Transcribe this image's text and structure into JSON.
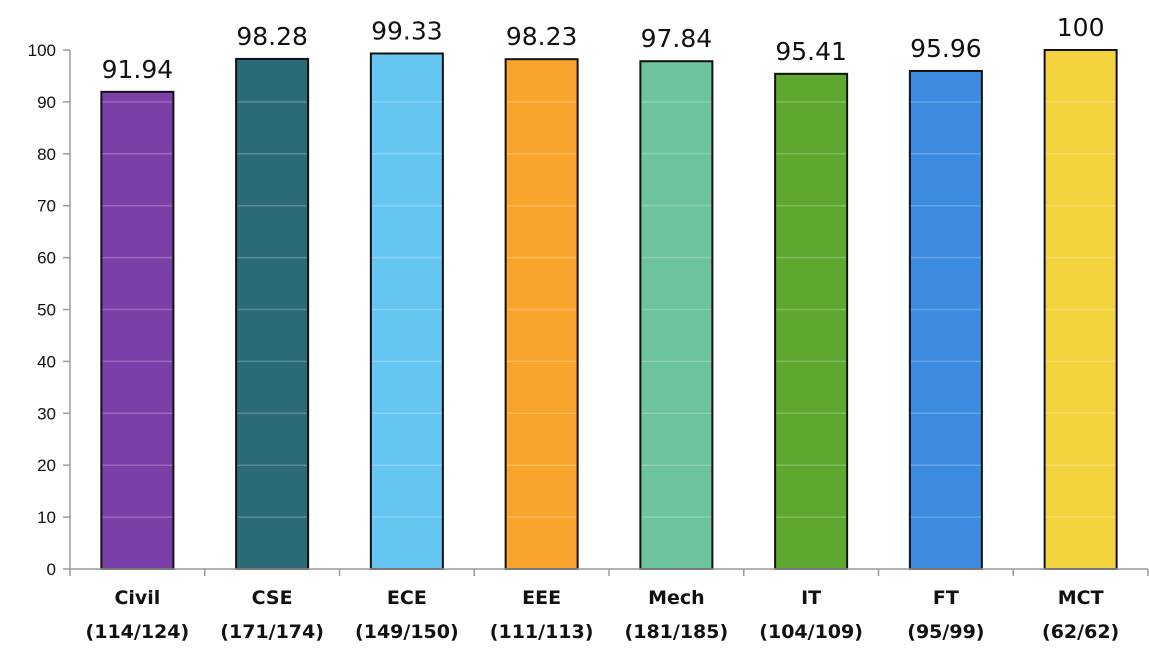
{
  "chart_data": {
    "type": "bar",
    "title": "",
    "xlabel": "",
    "ylabel": "",
    "ylim": [
      0,
      100
    ],
    "yticks": [
      0,
      10,
      20,
      30,
      40,
      50,
      60,
      70,
      80,
      90,
      100
    ],
    "grid": false,
    "legend": "none",
    "categories": [
      {
        "name": "Civil",
        "sub": "(114/124)"
      },
      {
        "name": "CSE",
        "sub": "(171/174)"
      },
      {
        "name": "ECE",
        "sub": "(149/150)"
      },
      {
        "name": "EEE",
        "sub": "(111/113)"
      },
      {
        "name": "Mech",
        "sub": "(181/185)"
      },
      {
        "name": "IT",
        "sub": "(104/109)"
      },
      {
        "name": "FT",
        "sub": "(95/99)"
      },
      {
        "name": "MCT",
        "sub": "(62/62)"
      }
    ],
    "values": [
      91.94,
      98.28,
      99.33,
      98.23,
      97.84,
      95.41,
      95.96,
      100
    ],
    "data_labels": [
      "91.94",
      "98.28",
      "99.33",
      "98.23",
      "97.84",
      "95.41",
      "95.96",
      "100"
    ],
    "colors": [
      "#7a40a8",
      "#2b6b78",
      "#66c6f2",
      "#f9a52d",
      "#6bc49a",
      "#5fa830",
      "#3d8be0",
      "#f2d23d"
    ]
  }
}
